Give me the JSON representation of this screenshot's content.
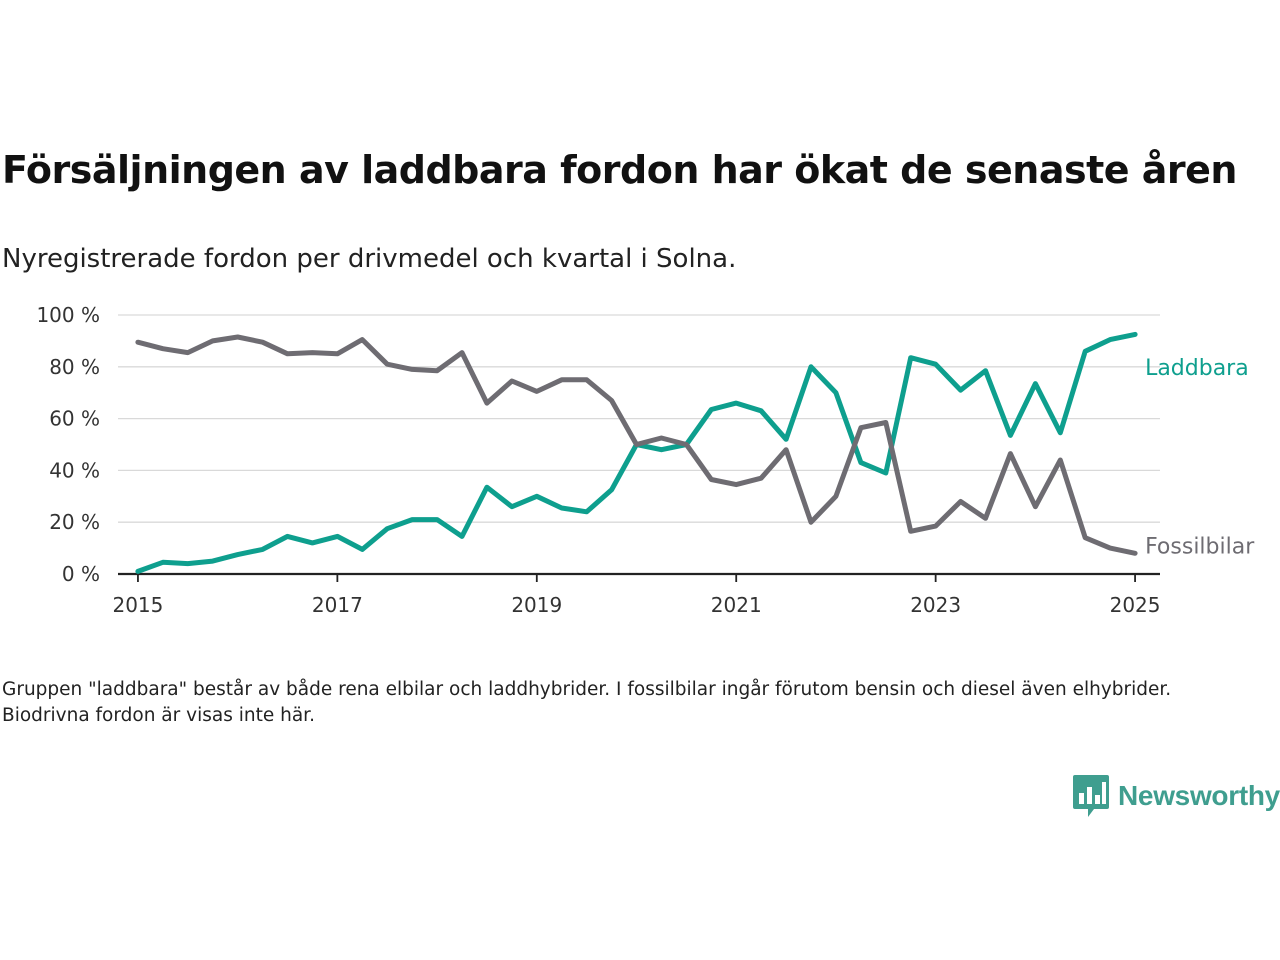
{
  "header": {
    "title": "Försäljningen av laddbara fordon har ökat de senaste åren",
    "subtitle": "Nyregistrerade fordon per drivmedel och kvartal i Solna."
  },
  "footer": {
    "note": "Gruppen \"laddbara\" består av både rena elbilar och laddhybrider. I fossilbilar ingår förutom bensin och diesel även elhybrider. Biodrivna fordon är visas inte här.",
    "brand": "Newsworthy",
    "brand_icon": "bar-chart-speech-bubble-icon",
    "brand_color": "#3f9e8f"
  },
  "chart_data": {
    "type": "line",
    "x": [
      2015.0,
      2015.25,
      2015.5,
      2015.75,
      2016.0,
      2016.25,
      2016.5,
      2016.75,
      2017.0,
      2017.25,
      2017.5,
      2017.75,
      2018.0,
      2018.25,
      2018.5,
      2018.75,
      2019.0,
      2019.25,
      2019.5,
      2019.75,
      2020.0,
      2020.25,
      2020.5,
      2020.75,
      2021.0,
      2021.25,
      2021.5,
      2021.75,
      2022.0,
      2022.25,
      2022.5,
      2022.75,
      2023.0,
      2023.25,
      2023.5,
      2023.75,
      2024.0,
      2024.25,
      2024.5,
      2024.75,
      2025.0
    ],
    "series": [
      {
        "name": "Laddbara",
        "color": "#0e9f8e",
        "values": [
          1,
          4.5,
          4,
          5,
          7.5,
          9.5,
          14.5,
          12,
          14.5,
          9.5,
          17.5,
          21,
          21,
          14.5,
          33.5,
          26,
          30,
          25.5,
          24,
          32.5,
          50,
          48,
          50,
          63.5,
          66,
          63,
          52,
          80,
          70,
          43,
          39,
          83.5,
          81,
          71,
          78.5,
          53.5,
          73.5,
          54.5,
          86,
          90.5,
          92.5
        ]
      },
      {
        "name": "Fossilbilar",
        "color": "#6e6c72",
        "values": [
          89.5,
          87,
          85.5,
          90,
          91.5,
          89.5,
          85,
          85.5,
          85,
          90.5,
          81,
          79,
          78.5,
          85.5,
          66,
          74.5,
          70.5,
          75,
          75,
          67,
          50,
          52.5,
          50,
          36.5,
          34.5,
          37,
          48,
          20,
          30,
          56.5,
          58.5,
          16.5,
          18.5,
          28,
          21.5,
          46.5,
          26,
          44,
          14,
          10,
          8
        ]
      }
    ],
    "x_ticks": [
      2015,
      2017,
      2019,
      2021,
      2023,
      2025
    ],
    "x_tick_labels": [
      "2015",
      "2017",
      "2019",
      "2021",
      "2023",
      "2025"
    ],
    "y_ticks": [
      0,
      20,
      40,
      60,
      80,
      100
    ],
    "y_tick_labels": [
      "0 %",
      "20 %",
      "40 %",
      "60 %",
      "80 %",
      "100 %"
    ],
    "xlim": [
      2014.8,
      2025.25
    ],
    "ylim": [
      0,
      100
    ],
    "xlabel": "",
    "ylabel": "",
    "grid": "horizontal",
    "legend": "direct labels at line ends"
  }
}
